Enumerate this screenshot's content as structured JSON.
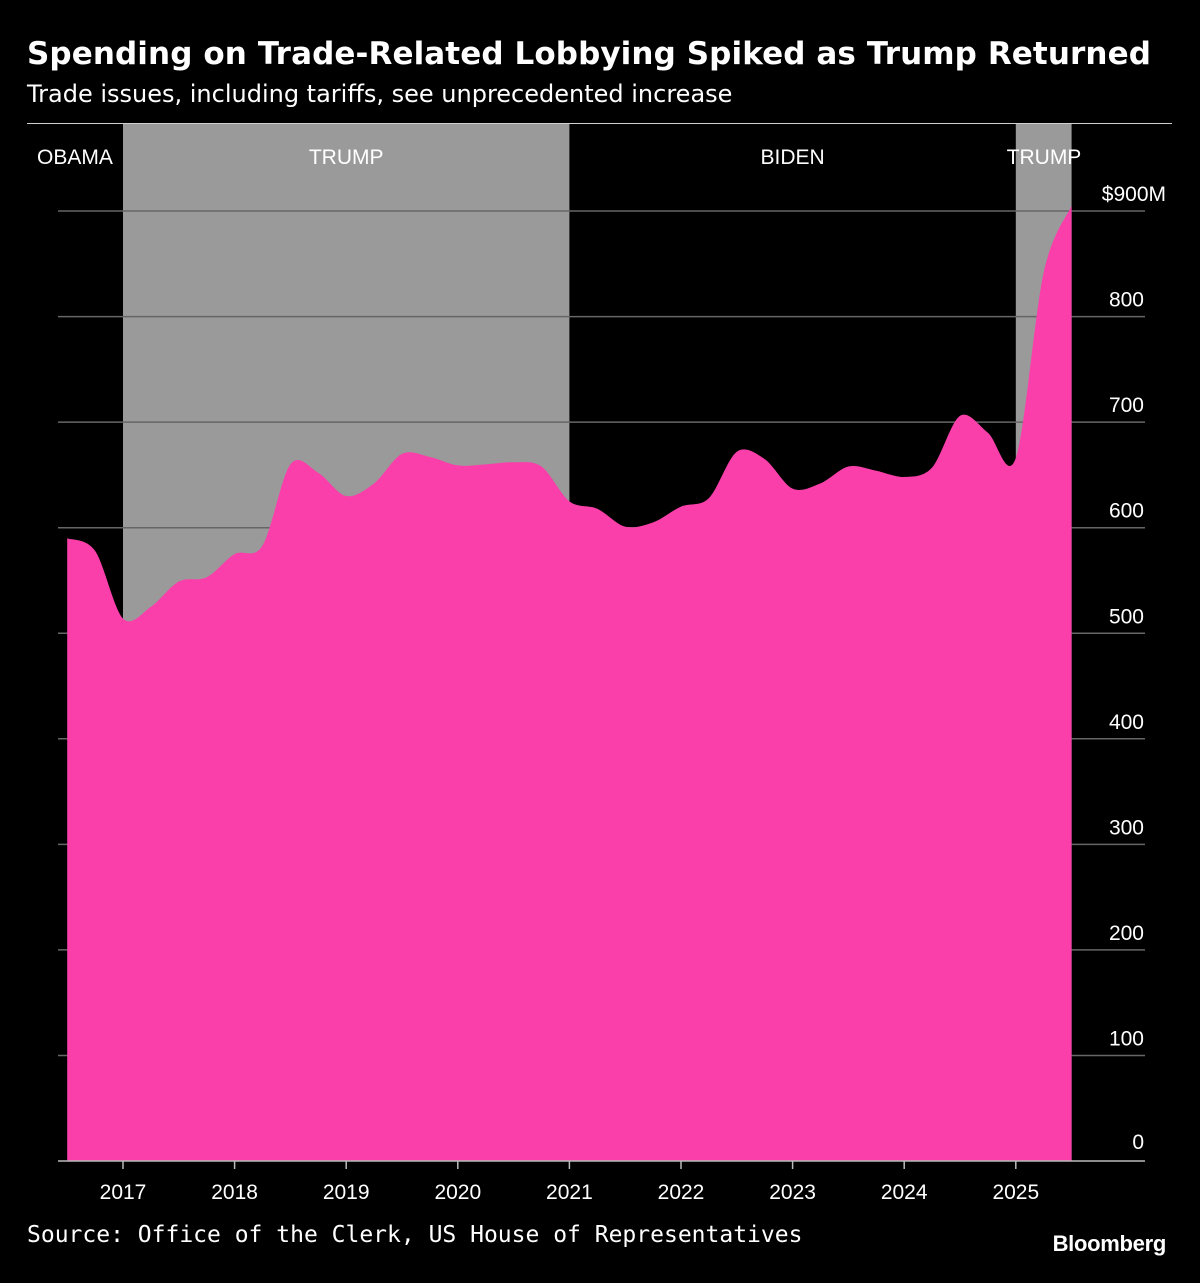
{
  "header": {
    "title": "Spending on Trade-Related Lobbying Spiked as Trump Returned",
    "subtitle": "Trade issues, including tariffs, see unprecedented increase"
  },
  "footer": {
    "source": "Source: Office of the Clerk, US House of Representatives",
    "logo": "Bloomberg"
  },
  "colors": {
    "background": "#000000",
    "area": "#fa3fab",
    "trump_shade": "#9a9a9a",
    "gridline": "#666666",
    "text": "#ffffff"
  },
  "chart_data": {
    "type": "area",
    "title": "Spending on Trade-Related Lobbying Spiked as Trump Returned",
    "subtitle": "Trade issues, including tariffs, see unprecedented increase",
    "xlabel": "",
    "ylabel": "",
    "ylim": [
      0,
      900
    ],
    "xlim": [
      2016.5,
      2025.5
    ],
    "y_ticks": [
      0,
      100,
      200,
      300,
      400,
      500,
      600,
      700,
      800,
      900
    ],
    "y_tick_labels": [
      "0",
      "100",
      "200",
      "300",
      "400",
      "500",
      "600",
      "700",
      "800",
      "$900M"
    ],
    "x_ticks": [
      2017,
      2018,
      2019,
      2020,
      2021,
      2022,
      2023,
      2024,
      2025
    ],
    "x_tick_labels": [
      "2017",
      "2018",
      "2019",
      "2020",
      "2021",
      "2022",
      "2023",
      "2024",
      "2025"
    ],
    "grid": true,
    "series": [
      {
        "x": [
          2016.5,
          2016.75,
          2017.0,
          2017.25,
          2017.5,
          2017.75,
          2018.0,
          2018.25,
          2018.5,
          2018.75,
          2019.0,
          2019.25,
          2019.5,
          2019.75,
          2020.0,
          2020.25,
          2020.5,
          2020.75,
          2021.0,
          2021.25,
          2021.5,
          2021.75,
          2022.0,
          2022.25,
          2022.5,
          2022.75,
          2023.0,
          2023.25,
          2023.5,
          2023.75,
          2024.0,
          2024.25,
          2024.5,
          2024.75,
          2025.0,
          2025.25,
          2025.5
        ],
        "y": [
          590,
          578,
          514,
          525,
          549,
          553,
          575,
          583,
          660,
          652,
          630,
          642,
          670,
          667,
          659,
          660,
          662,
          658,
          625,
          618,
          601,
          605,
          620,
          628,
          672,
          665,
          637,
          642,
          658,
          654,
          648,
          657,
          706,
          690,
          666,
          842,
          905
        ]
      }
    ],
    "shaded_periods": [
      {
        "label": "OBAMA",
        "start": 2016.5,
        "end": 2017.0,
        "shaded": false
      },
      {
        "label": "TRUMP",
        "start": 2017.0,
        "end": 2021.0,
        "shaded": true
      },
      {
        "label": "BIDEN",
        "start": 2021.0,
        "end": 2025.0,
        "shaded": false
      },
      {
        "label": "TRUMP",
        "start": 2025.0,
        "end": 2025.5,
        "shaded": true
      }
    ]
  }
}
